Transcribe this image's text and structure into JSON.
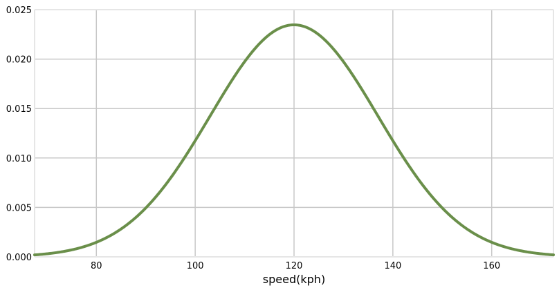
{
  "chart_data": {
    "type": "line",
    "title": "",
    "xlabel": "speed(kph)",
    "ylabel": "",
    "xlim": [
      67.5,
      172.5
    ],
    "ylim": [
      0,
      0.025
    ],
    "xticks": [
      80,
      100,
      120,
      140,
      160
    ],
    "xtick_labels": [
      "80",
      "100",
      "120",
      "140",
      "160"
    ],
    "yticks": [
      0,
      0.005,
      0.01,
      0.015,
      0.02,
      0.025
    ],
    "ytick_labels": [
      "0.000",
      "0.005",
      "0.010",
      "0.015",
      "0.020",
      "0.025"
    ],
    "grid": true,
    "series": [
      {
        "color": "#6a8f4a",
        "x": [
          67.5,
          70,
          72.5,
          75,
          77.5,
          80,
          82.5,
          85,
          87.5,
          90,
          92.5,
          95,
          97.5,
          100,
          102.5,
          105,
          107.5,
          110,
          112.5,
          115,
          117.5,
          120,
          122.5,
          125,
          127.5,
          130,
          132.5,
          135,
          137.5,
          140,
          142.5,
          145,
          147.5,
          150,
          152.5,
          155,
          157.5,
          160,
          162.5,
          165,
          167.5,
          170,
          172.5
        ],
        "y": [
          0.00022,
          0.00037,
          0.00061,
          0.00094,
          0.00142,
          0.00205,
          0.00288,
          0.00391,
          0.00513,
          0.00652,
          0.00802,
          0.00956,
          0.01104,
          0.01236,
          0.01342,
          0.01412,
          0.01936,
          0.02055,
          0.02182,
          0.02286,
          0.02336,
          0.02345,
          0.02336,
          0.02286,
          0.02182,
          0.02055,
          0.01936,
          0.01412,
          0.01342,
          0.01236,
          0.01104,
          0.00956,
          0.00802,
          0.00652,
          0.00513,
          0.00391,
          0.00288,
          0.00205,
          0.00142,
          0.00094,
          0.00061,
          0.00037,
          0.00022
        ],
        "mean": 120,
        "std": 17
      }
    ]
  }
}
